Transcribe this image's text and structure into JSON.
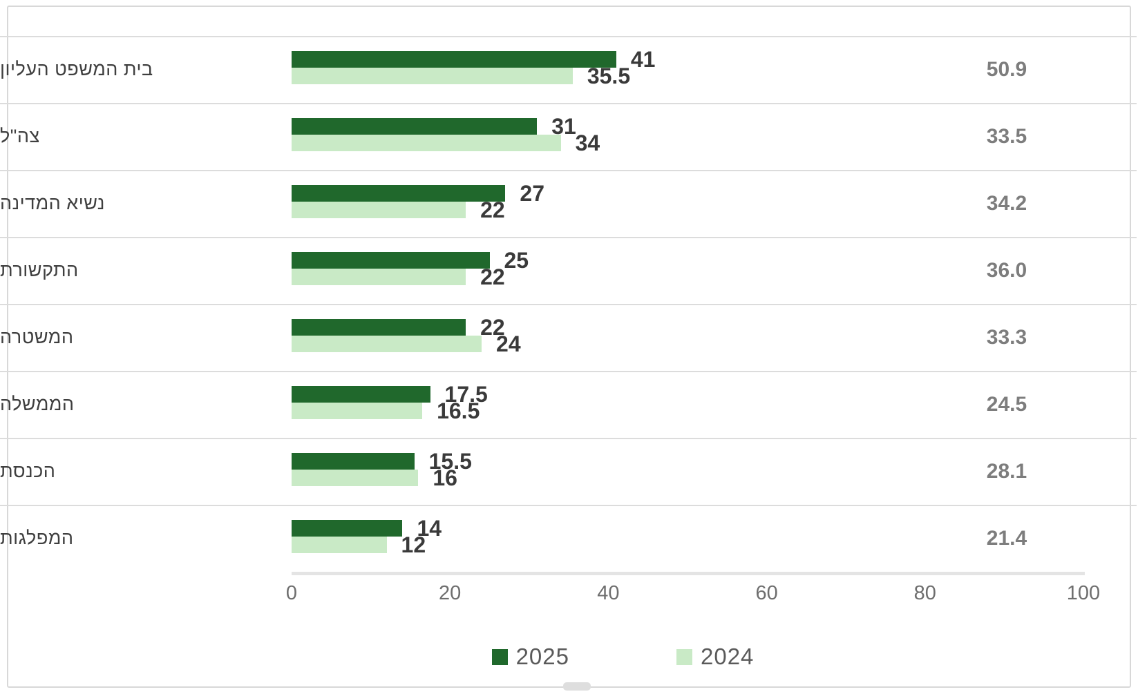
{
  "chart_data": {
    "type": "bar",
    "orientation": "horizontal",
    "title": "",
    "xlabel": "",
    "ylabel": "",
    "categories": [
      "בית המשפט העליון",
      "צה\"ל",
      "נשיא המדינה",
      "התקשורת",
      "המשטרה",
      "הממשלה",
      "הכנסת",
      "המפלגות"
    ],
    "series": [
      {
        "name": "2025",
        "color": "#20682c",
        "values": [
          41,
          31,
          27,
          25,
          22,
          17.5,
          15.5,
          14
        ]
      },
      {
        "name": "2024",
        "color": "#c9eac6",
        "values": [
          35.5,
          34,
          22,
          22,
          24,
          16.5,
          16,
          12
        ]
      }
    ],
    "bar_labels_2025": [
      "41",
      "31",
      "27",
      "25",
      "22",
      "17.5",
      "15.5",
      "14"
    ],
    "bar_labels_2024": [
      "35.5",
      "34",
      "22",
      "22",
      "24",
      "16.5",
      "16",
      "12"
    ],
    "right_column_values": [
      "50.9",
      "33.5",
      "34.2",
      "36.0",
      "33.3",
      "24.5",
      "28.1",
      "21.4"
    ],
    "x_ticks": [
      "0",
      "20",
      "40",
      "60",
      "80",
      "100"
    ],
    "x_tick_numbers": [
      0,
      20,
      40,
      60,
      80,
      100
    ],
    "xlim": [
      0,
      100
    ],
    "grid": "horizontal row separator lines only",
    "legend_position": "bottom-center",
    "legend": [
      "2025",
      "2024"
    ]
  }
}
